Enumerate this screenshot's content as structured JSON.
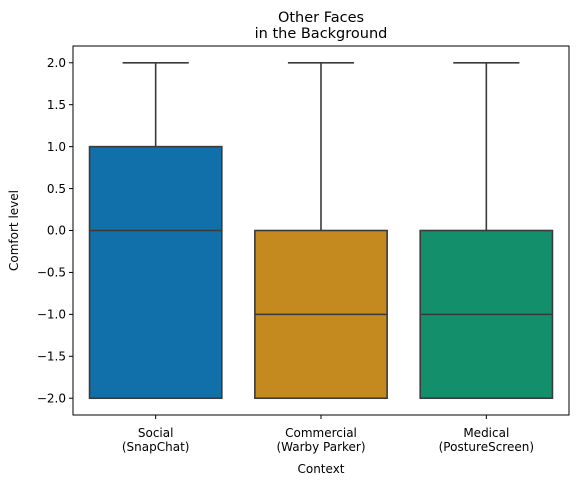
{
  "chart_data": {
    "type": "box",
    "title": [
      "Other Faces",
      "in the Background"
    ],
    "xlabel": "Context",
    "ylabel": "Comfort level",
    "ylim": [
      -2.2,
      2.2
    ],
    "yticks": [
      2.0,
      1.5,
      1.0,
      0.5,
      0.0,
      -0.5,
      -1.0,
      -1.5,
      -2.0
    ],
    "ytick_labels": [
      "2.0",
      "1.5",
      "1.0",
      "0.5",
      "0.0",
      "−0.5",
      "−1.0",
      "−1.5",
      "−2.0"
    ],
    "grid": false,
    "categories": [
      [
        "Social",
        "(SnapChat)"
      ],
      [
        "Commercial",
        "(Warby Parker)"
      ],
      [
        "Medical",
        "(PostureScreen)"
      ]
    ],
    "boxes": [
      {
        "whisker_low": -2.0,
        "q1": -2.0,
        "median": 0.0,
        "q3": 1.0,
        "whisker_high": 2.0,
        "color": "#1170aa"
      },
      {
        "whisker_low": -2.0,
        "q1": -2.0,
        "median": -1.0,
        "q3": 0.0,
        "whisker_high": 2.0,
        "color": "#c4891f"
      },
      {
        "whisker_low": -2.0,
        "q1": -2.0,
        "median": -1.0,
        "q3": 0.0,
        "whisker_high": 2.0,
        "color": "#148f6c"
      }
    ],
    "line_color": "#3a3a3a"
  }
}
